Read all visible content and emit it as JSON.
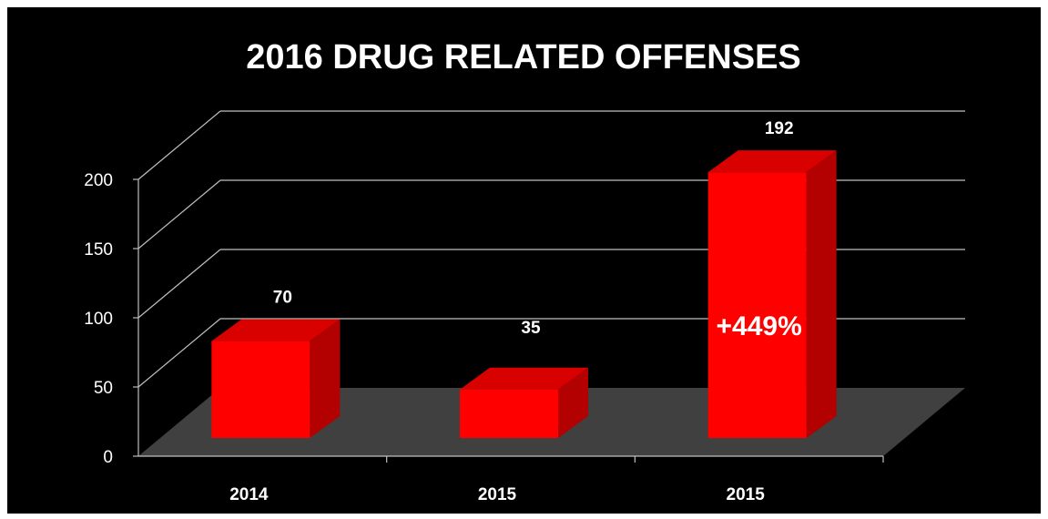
{
  "chart_data": {
    "type": "bar",
    "title": "2016 DRUG RELATED OFFENSES",
    "categories": [
      "2014",
      "2015",
      "2015"
    ],
    "values": [
      70,
      35,
      192
    ],
    "data_labels": [
      "70",
      "35",
      "192"
    ],
    "ylim": [
      0,
      200
    ],
    "yticks": [
      "0",
      "50",
      "100",
      "150",
      "200"
    ],
    "grid": true,
    "annotation": {
      "text": "+449%",
      "bar_index": 2
    },
    "colors": {
      "background": "#000000",
      "bar_front": "#ff0000",
      "bar_side": "#b30000",
      "bar_top": "#d90000",
      "floor": "#404040",
      "grid": "#bfbfbf",
      "text": "#ffffff"
    }
  }
}
